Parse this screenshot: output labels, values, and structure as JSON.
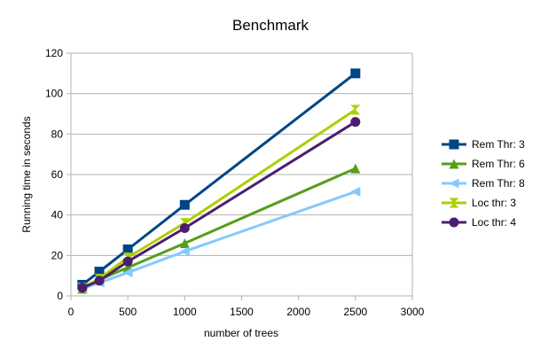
{
  "chart_data": {
    "type": "line",
    "title": "Benchmark",
    "xlabel": "number of trees",
    "ylabel": "Running time in seconds",
    "xlim": [
      0,
      3000
    ],
    "ylim": [
      0,
      120
    ],
    "x_ticks": [
      "0",
      "500",
      "1000",
      "1500",
      "2000",
      "2500",
      "3000"
    ],
    "y_ticks": [
      "0",
      "20",
      "40",
      "60",
      "80",
      "100",
      "120"
    ],
    "grid": "horizontal",
    "legend_position": "right",
    "x": [
      100,
      250,
      500,
      1000,
      2500
    ],
    "series": [
      {
        "name": "Rem Thr: 3",
        "color": "#004586",
        "marker": "square",
        "values": [
          5.5,
          12,
          23,
          45,
          110
        ]
      },
      {
        "name": "Rem Thr: 6",
        "color": "#579d1c",
        "marker": "triangle-up",
        "values": [
          3.5,
          8,
          14,
          26,
          63
        ]
      },
      {
        "name": "Rem Thr: 8",
        "color": "#83caff",
        "marker": "triangle-left",
        "values": [
          3.5,
          6.5,
          11.5,
          22,
          51.5
        ]
      },
      {
        "name": "Loc thr: 3",
        "color": "#aecf00",
        "marker": "x",
        "values": [
          4,
          8.5,
          19,
          36,
          92
        ]
      },
      {
        "name": "Loc thr: 4",
        "color": "#4b1f6f",
        "marker": "circle",
        "values": [
          4,
          7.5,
          17,
          33.5,
          86
        ]
      }
    ]
  }
}
